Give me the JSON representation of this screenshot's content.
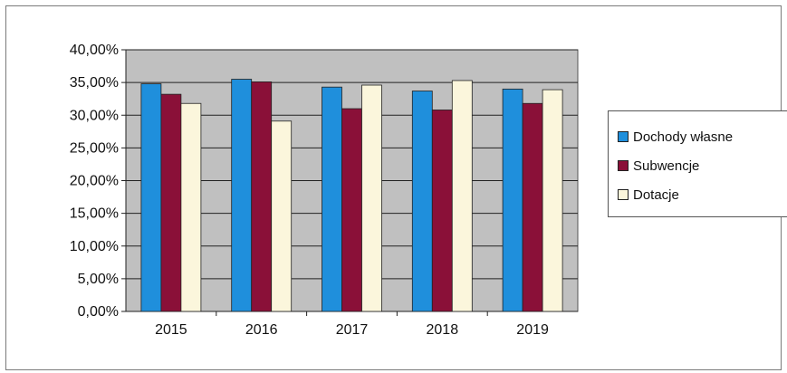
{
  "chart_data": {
    "type": "bar",
    "categories": [
      "2015",
      "2016",
      "2017",
      "2018",
      "2019"
    ],
    "series": [
      {
        "name": "Dochody własne",
        "color": "#1f8fdc",
        "values": [
          34.8,
          35.5,
          34.3,
          33.7,
          34.0
        ]
      },
      {
        "name": "Subwencje",
        "color": "#8a1038",
        "values": [
          33.2,
          35.1,
          31.0,
          30.8,
          31.8
        ]
      },
      {
        "name": "Dotacje",
        "color": "#fbf6dc",
        "values": [
          31.8,
          29.1,
          34.6,
          35.3,
          33.9
        ]
      }
    ],
    "ylim": [
      0,
      40
    ],
    "yticks": [
      "0,00%",
      "5,00%",
      "10,00%",
      "15,00%",
      "20,00%",
      "25,00%",
      "30,00%",
      "35,00%",
      "40,00%"
    ],
    "grid": true,
    "plot_background": "#c0c0c0",
    "legend_position": "right"
  }
}
